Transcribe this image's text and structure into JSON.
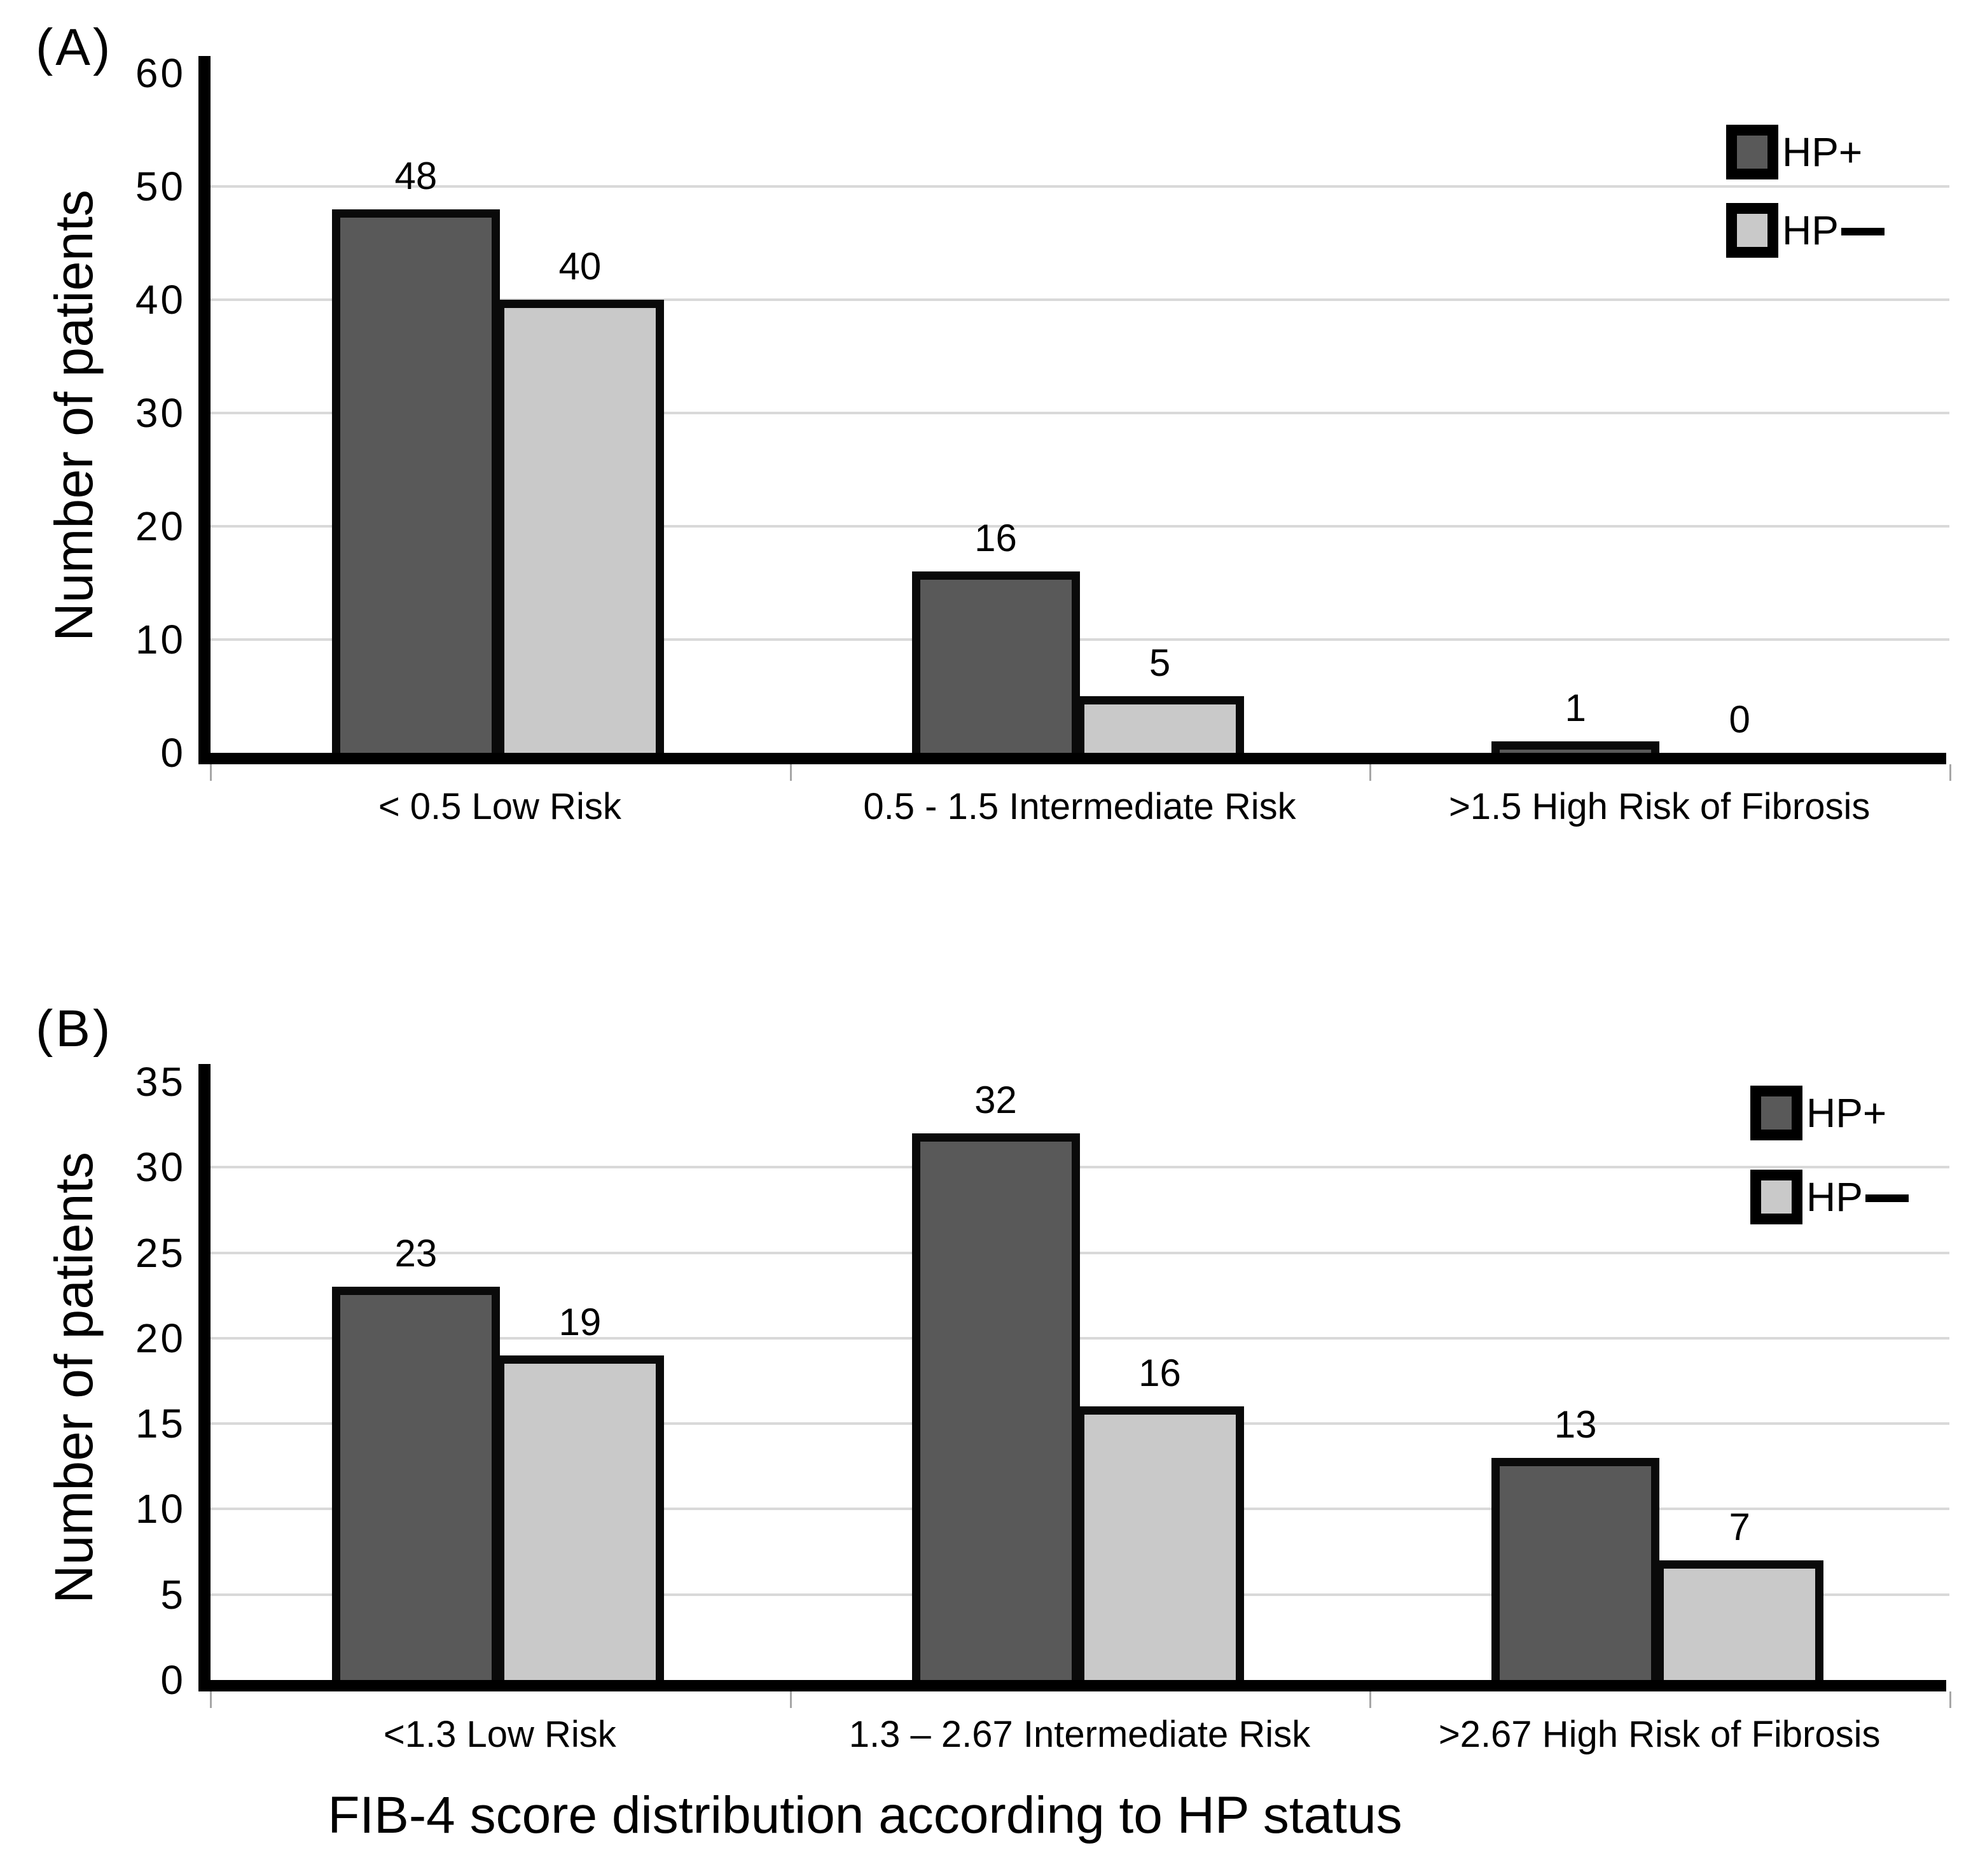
{
  "ui": {
    "title": "FIB-4 score distribution according to HP status",
    "panels": [
      {
        "label": "(A)",
        "y_axis_title": "Number of patients"
      },
      {
        "label": "(B)",
        "y_axis_title": "Number of patients"
      }
    ],
    "colors": {
      "hp_plus": "#595959",
      "hp_minus": "#c9c9c9",
      "bar_border": "#0a0a0a",
      "gridline": "#d9d9d9",
      "axis": "#000000",
      "background": "#ffffff"
    }
  },
  "chart_data": [
    {
      "type": "bar",
      "panel": "A",
      "ylabel": "Number of patients",
      "ylim": [
        0,
        60
      ],
      "ytick_step": 10,
      "yticks": [
        60,
        50,
        40,
        30,
        20,
        10,
        0
      ],
      "gridlines": [
        10,
        20,
        30,
        40,
        50
      ],
      "grid": true,
      "legend_position": "top-right",
      "legend": [
        "HP+",
        "HP—"
      ],
      "categories": [
        "< 0.5 Low Risk",
        "0.5 - 1.5 Intermediate Risk",
        ">1.5 High Risk of Fibrosis"
      ],
      "series": [
        {
          "name": "HP+",
          "values": [
            48,
            16,
            1
          ]
        },
        {
          "name": "HP—",
          "values": [
            40,
            5,
            0
          ]
        }
      ]
    },
    {
      "type": "bar",
      "panel": "B",
      "ylabel": "Number of patients",
      "xlabel": "FIB-4 score distribution according to HP status",
      "ylim": [
        0,
        35
      ],
      "ytick_step": 5,
      "yticks": [
        35,
        30,
        25,
        20,
        15,
        10,
        5,
        0
      ],
      "gridlines": [
        5,
        10,
        15,
        20,
        25,
        30
      ],
      "grid": true,
      "legend_position": "top-right",
      "legend": [
        "HP+",
        "HP—"
      ],
      "categories": [
        "<1.3 Low Risk",
        "1.3 – 2.67 Intermediate Risk",
        ">2.67 High Risk of Fibrosis"
      ],
      "series": [
        {
          "name": "HP+",
          "values": [
            23,
            32,
            13
          ]
        },
        {
          "name": "HP—",
          "values": [
            19,
            16,
            7
          ]
        }
      ]
    }
  ]
}
